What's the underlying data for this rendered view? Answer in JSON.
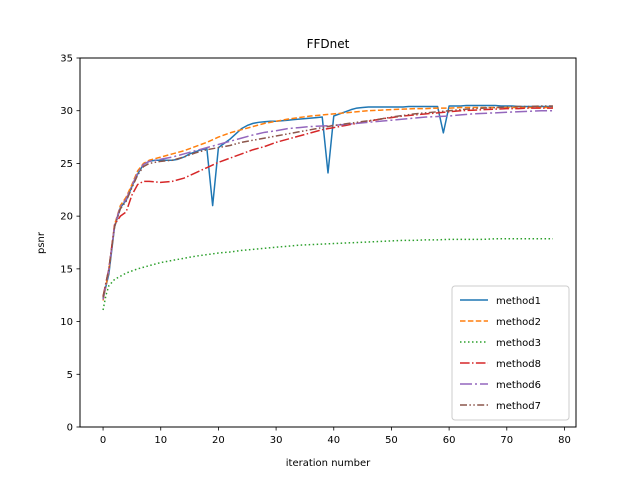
{
  "chart_data": {
    "type": "line",
    "title": "FFDnet",
    "xlabel": "iteration number",
    "ylabel": "psnr",
    "xlim": [
      -4,
      82
    ],
    "ylim": [
      0,
      35
    ],
    "xticks": [
      0,
      10,
      20,
      30,
      40,
      50,
      60,
      70,
      80
    ],
    "yticks": [
      0,
      5,
      10,
      15,
      20,
      25,
      30,
      35
    ],
    "grid": false,
    "legend_position": "bottom-right",
    "series": [
      {
        "name": "method1",
        "color": "#1f77b4",
        "dash": "solid",
        "x": [
          0,
          1,
          2,
          3,
          4,
          5,
          6,
          7,
          8,
          9,
          10,
          11,
          12,
          13,
          14,
          15,
          16,
          17,
          18,
          19,
          20,
          21,
          22,
          23,
          24,
          25,
          26,
          27,
          28,
          29,
          30,
          31,
          32,
          33,
          34,
          35,
          36,
          37,
          38,
          39,
          40,
          41,
          42,
          43,
          44,
          45,
          46,
          47,
          48,
          49,
          50,
          51,
          52,
          53,
          54,
          55,
          56,
          57,
          58,
          59,
          60,
          61,
          62,
          63,
          64,
          65,
          66,
          67,
          68,
          69,
          70,
          71,
          72,
          73,
          74,
          75,
          76,
          77,
          78
        ],
        "y": [
          12.2,
          14.5,
          19.0,
          20.8,
          21.5,
          22.8,
          24.0,
          24.9,
          25.2,
          25.3,
          25.3,
          25.3,
          25.3,
          25.4,
          25.6,
          25.9,
          26.1,
          26.3,
          26.4,
          21.0,
          26.5,
          26.9,
          27.3,
          27.8,
          28.3,
          28.6,
          28.8,
          28.9,
          28.95,
          29.0,
          29.0,
          29.05,
          29.1,
          29.15,
          29.2,
          29.25,
          29.3,
          29.35,
          29.4,
          24.1,
          29.5,
          29.7,
          29.9,
          30.1,
          30.25,
          30.3,
          30.35,
          30.35,
          30.35,
          30.35,
          30.35,
          30.35,
          30.35,
          30.4,
          30.4,
          30.4,
          30.4,
          30.4,
          30.4,
          27.9,
          30.45,
          30.45,
          30.45,
          30.5,
          30.5,
          30.5,
          30.5,
          30.5,
          30.5,
          30.45,
          30.45,
          30.45,
          30.4,
          30.4,
          30.4,
          30.4,
          30.4,
          30.4,
          30.4
        ]
      },
      {
        "name": "method2",
        "color": "#ff7f0e",
        "dash": "dashed",
        "x": [
          0,
          1,
          2,
          3,
          4,
          5,
          6,
          7,
          8,
          10,
          12,
          14,
          16,
          18,
          20,
          22,
          24,
          26,
          28,
          30,
          32,
          34,
          36,
          38,
          40,
          42,
          44,
          46,
          48,
          50,
          52,
          54,
          56,
          58,
          60,
          62,
          64,
          66,
          68,
          70,
          72,
          74,
          76,
          78
        ],
        "y": [
          12.0,
          14.8,
          19.2,
          21.0,
          21.8,
          23.0,
          24.3,
          25.0,
          25.3,
          25.6,
          25.9,
          26.2,
          26.6,
          27.0,
          27.5,
          27.9,
          28.2,
          28.5,
          28.8,
          29.0,
          29.2,
          29.35,
          29.5,
          29.6,
          29.7,
          29.8,
          29.9,
          30.0,
          30.05,
          30.1,
          30.15,
          30.2,
          30.2,
          30.25,
          30.25,
          30.3,
          30.3,
          30.3,
          30.3,
          30.3,
          30.3,
          30.3,
          30.3,
          30.3
        ]
      },
      {
        "name": "method3",
        "color": "#2ca02c",
        "dash": "dotted",
        "x": [
          0,
          0.5,
          1,
          2,
          3,
          4,
          6,
          8,
          10,
          12,
          14,
          16,
          18,
          20,
          22,
          24,
          26,
          28,
          30,
          32,
          34,
          36,
          38,
          40,
          42,
          44,
          46,
          48,
          50,
          52,
          54,
          56,
          58,
          60,
          62,
          64,
          66,
          68,
          70,
          72,
          74,
          76,
          78
        ],
        "y": [
          11.1,
          12.5,
          13.4,
          14.0,
          14.3,
          14.6,
          15.0,
          15.3,
          15.6,
          15.8,
          16.0,
          16.2,
          16.35,
          16.5,
          16.6,
          16.75,
          16.85,
          16.95,
          17.05,
          17.15,
          17.25,
          17.3,
          17.35,
          17.4,
          17.45,
          17.5,
          17.55,
          17.6,
          17.65,
          17.7,
          17.7,
          17.75,
          17.75,
          17.8,
          17.8,
          17.8,
          17.8,
          17.85,
          17.85,
          17.85,
          17.85,
          17.85,
          17.85
        ]
      },
      {
        "name": "method8",
        "color": "#d62728",
        "dash": "dashdot",
        "x": [
          0,
          1,
          2,
          3,
          4,
          5,
          6,
          7,
          8,
          10,
          12,
          14,
          16,
          18,
          20,
          22,
          24,
          26,
          28,
          30,
          32,
          34,
          36,
          38,
          40,
          42,
          44,
          46,
          48,
          50,
          52,
          54,
          56,
          58,
          60,
          62,
          64,
          66,
          68,
          70,
          72,
          74,
          76,
          78
        ],
        "y": [
          12.4,
          15.0,
          19.2,
          20.0,
          20.4,
          22.0,
          23.0,
          23.3,
          23.3,
          23.2,
          23.3,
          23.6,
          24.1,
          24.6,
          25.1,
          25.5,
          25.9,
          26.3,
          26.6,
          27.0,
          27.3,
          27.6,
          27.9,
          28.2,
          28.4,
          28.6,
          28.8,
          29.0,
          29.2,
          29.35,
          29.5,
          29.6,
          29.7,
          29.8,
          29.9,
          30.0,
          30.05,
          30.1,
          30.15,
          30.2,
          30.2,
          30.25,
          30.25,
          30.25
        ]
      },
      {
        "name": "method6",
        "color": "#9467bd",
        "dash": "longdashdot",
        "x": [
          0,
          1,
          2,
          3,
          4,
          5,
          6,
          7,
          8,
          10,
          12,
          14,
          16,
          18,
          20,
          22,
          24,
          26,
          28,
          30,
          32,
          34,
          36,
          38,
          40,
          42,
          44,
          46,
          48,
          50,
          52,
          54,
          56,
          58,
          60,
          62,
          64,
          66,
          68,
          70,
          72,
          74,
          76,
          78
        ],
        "y": [
          12.1,
          14.9,
          19.1,
          20.9,
          21.6,
          22.9,
          24.1,
          24.9,
          25.2,
          25.4,
          25.6,
          25.9,
          26.2,
          26.5,
          26.8,
          27.1,
          27.4,
          27.7,
          27.95,
          28.1,
          28.3,
          28.4,
          28.5,
          28.55,
          28.6,
          28.7,
          28.8,
          28.9,
          29.0,
          29.1,
          29.2,
          29.3,
          29.4,
          29.45,
          29.5,
          29.6,
          29.7,
          29.75,
          29.8,
          29.85,
          29.9,
          29.95,
          30.0,
          30.0
        ]
      },
      {
        "name": "method7",
        "color": "#8c564b",
        "dash": "dashdotdot",
        "x": [
          0,
          1,
          2,
          3,
          4,
          5,
          6,
          7,
          8,
          10,
          12,
          14,
          16,
          18,
          20,
          22,
          24,
          26,
          28,
          30,
          32,
          34,
          36,
          38,
          40,
          42,
          44,
          46,
          48,
          50,
          52,
          54,
          56,
          58,
          60,
          62,
          64,
          66,
          68,
          70,
          72,
          74,
          76,
          78
        ],
        "y": [
          12.3,
          15.0,
          19.0,
          20.7,
          21.4,
          22.7,
          23.9,
          24.7,
          25.0,
          25.2,
          25.3,
          25.6,
          26.0,
          26.3,
          26.5,
          26.7,
          27.0,
          27.2,
          27.4,
          27.6,
          27.8,
          28.0,
          28.2,
          28.4,
          28.6,
          28.75,
          28.9,
          29.05,
          29.2,
          29.4,
          29.55,
          29.7,
          29.8,
          29.9,
          30.0,
          30.1,
          30.2,
          30.25,
          30.3,
          30.35,
          30.4,
          30.4,
          30.45,
          30.45
        ]
      }
    ]
  }
}
